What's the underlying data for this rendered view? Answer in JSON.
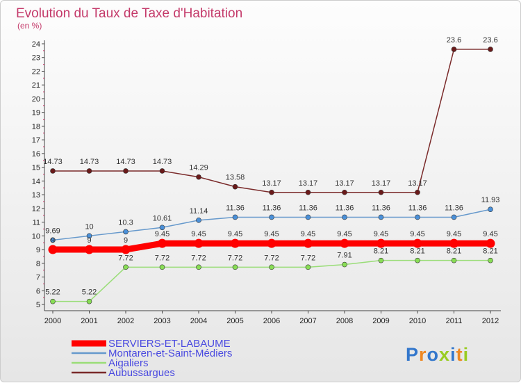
{
  "chart_data": {
    "type": "line",
    "title": "Evolution du Taux de Taxe d'Habitation",
    "ylabel": "(en %)",
    "xlabel": "",
    "x": [
      "2000",
      "2001",
      "2002",
      "2003",
      "2004",
      "2005",
      "2006",
      "2007",
      "2008",
      "2009",
      "2010",
      "2011",
      "2012"
    ],
    "ylim": [
      5,
      24
    ],
    "yticks": [
      5,
      6,
      7,
      8,
      9,
      10,
      11,
      12,
      13,
      14,
      15,
      16,
      17,
      18,
      19,
      20,
      21,
      22,
      23,
      24
    ],
    "grid": false,
    "legend_position": "bottom-left",
    "series": [
      {
        "name": "SERVIERS-ET-LABAUME",
        "color": "#ff0000",
        "marker_color": "#ff0000",
        "width": 9,
        "values": [
          9,
          9,
          9,
          9.45,
          9.45,
          9.45,
          9.45,
          9.45,
          9.45,
          9.45,
          9.45,
          9.45,
          9.45
        ],
        "labels": [
          "9",
          "9",
          "9",
          "9.45",
          "9.45",
          "9.45",
          "9.45",
          "9.45",
          "9.45",
          "9.45",
          "9.45",
          "9.45",
          "9.45"
        ]
      },
      {
        "name": "Montaren-et-Saint-Médiers",
        "color": "#6699cc",
        "marker_color": "#4a90d9",
        "width": 1.5,
        "values": [
          9.69,
          10,
          10.3,
          10.61,
          11.14,
          11.36,
          11.36,
          11.36,
          11.36,
          11.36,
          11.36,
          11.36,
          11.93
        ],
        "labels": [
          "9.69",
          "10",
          "10.3",
          "10.61",
          "11.14",
          "11.36",
          "11.36",
          "11.36",
          "11.36",
          "11.36",
          "11.36",
          "11.36",
          "11.93"
        ]
      },
      {
        "name": "Aigaliers",
        "color": "#99dd77",
        "marker_color": "#88dd55",
        "width": 1.5,
        "values": [
          5.22,
          5.22,
          7.72,
          7.72,
          7.72,
          7.72,
          7.72,
          7.72,
          7.91,
          8.21,
          8.21,
          8.21,
          8.21
        ],
        "labels": [
          "5.22",
          "5.22",
          "7.72",
          "7.72",
          "7.72",
          "7.72",
          "7.72",
          "7.72",
          "7.91",
          "8.21",
          "8.21",
          "8.21",
          "8.21"
        ]
      },
      {
        "name": "Aubussargues",
        "color": "#7a2a2a",
        "marker_color": "#6a1a1a",
        "width": 1.5,
        "values": [
          14.73,
          14.73,
          14.73,
          14.73,
          14.29,
          13.58,
          13.17,
          13.17,
          13.17,
          13.17,
          13.17,
          23.6,
          23.6
        ],
        "labels": [
          "14.73",
          "14.73",
          "14.73",
          "14.73",
          "14.29",
          "13.58",
          "13.17",
          "13.17",
          "13.17",
          "13.17",
          "13.17",
          "23.6",
          "23.6"
        ]
      }
    ]
  },
  "logo": {
    "text": "Proxiti",
    "letter_colors": [
      "#3377cc",
      "#ee8822",
      "#3377cc",
      "#99cc22",
      "#3377cc",
      "#ee8822",
      "#99cc22"
    ]
  }
}
